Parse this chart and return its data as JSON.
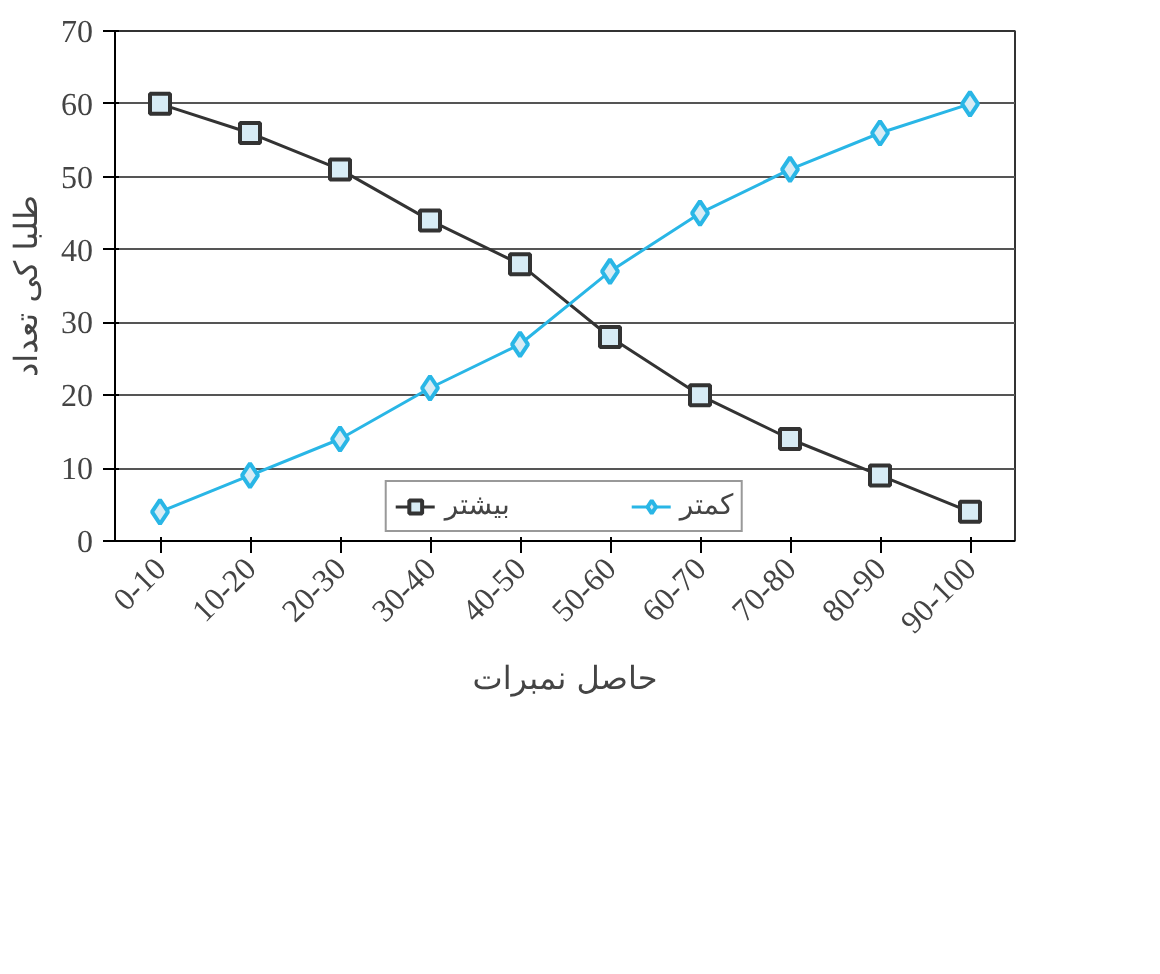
{
  "chart_data": {
    "type": "line",
    "xlabel": "حاصل نمبرات",
    "ylabel": "طلبا کی تعداد",
    "categories": [
      "0-10",
      "10-20",
      "20-30",
      "30-40",
      "40-50",
      "50-60",
      "60-70",
      "70-80",
      "80-90",
      "90-100"
    ],
    "series": [
      {
        "name": "بیشتر",
        "color": "#333333",
        "marker": "square",
        "values": [
          60,
          56,
          51,
          44,
          38,
          28,
          20,
          14,
          9,
          4
        ]
      },
      {
        "name": "کمتر",
        "color": "#29b6e6",
        "marker": "diamond",
        "values": [
          4,
          9,
          14,
          21,
          27,
          37,
          45,
          51,
          56,
          60
        ]
      }
    ],
    "ylim": [
      0,
      70
    ],
    "yticks": [
      0,
      10,
      20,
      30,
      40,
      50,
      60,
      70
    ],
    "grid": "y",
    "legend": "bottom"
  }
}
